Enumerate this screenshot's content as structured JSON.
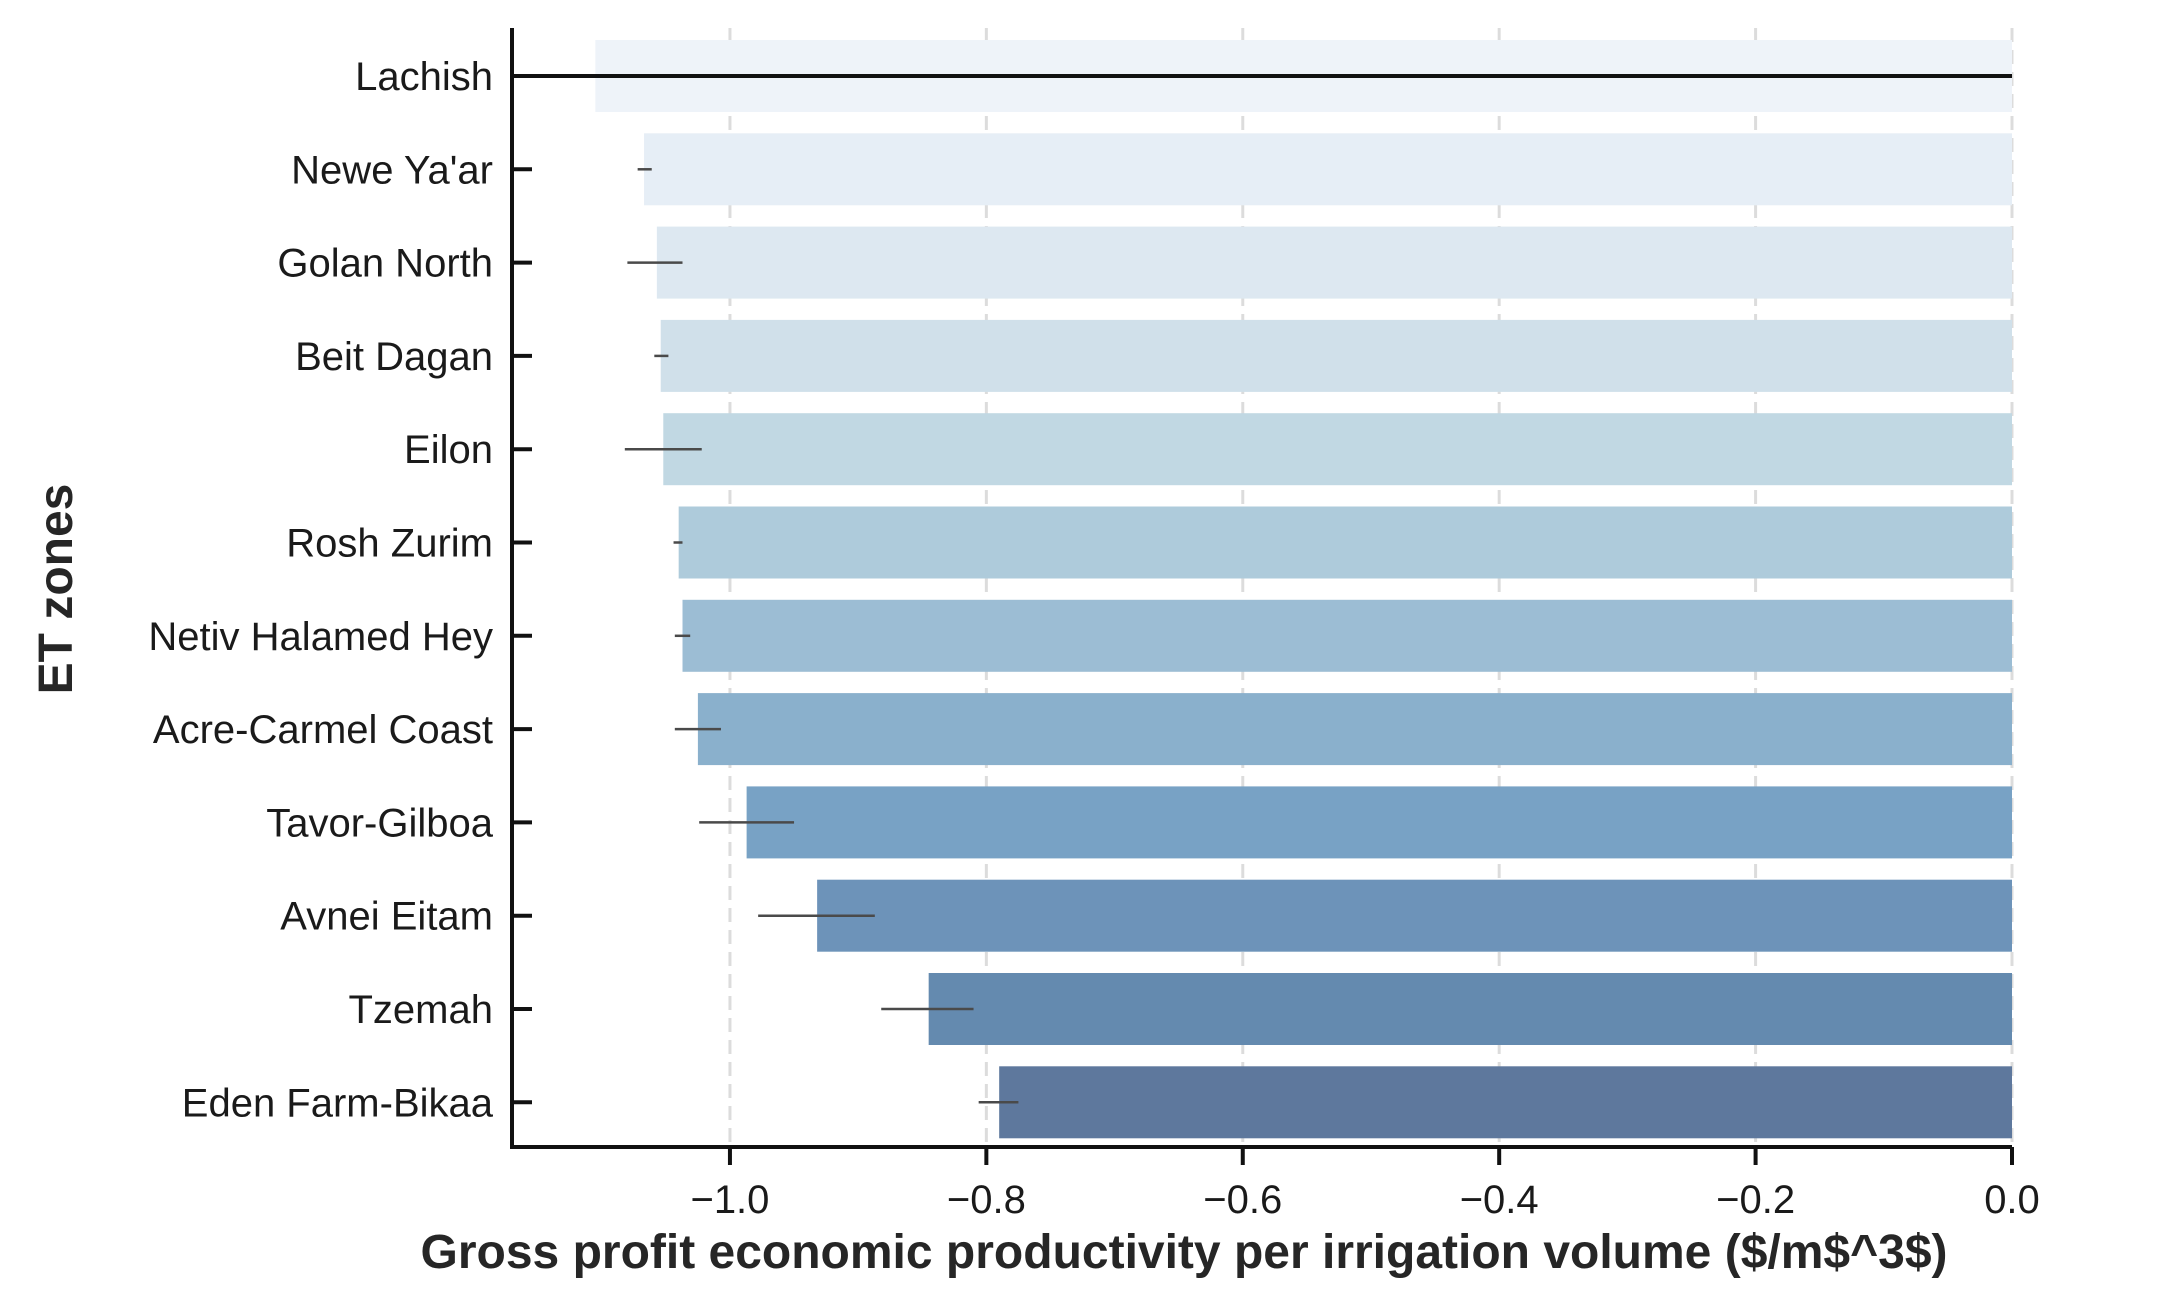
{
  "chart_data": {
    "type": "bar",
    "orientation": "horizontal",
    "xlabel": "Gross profit economic productivity per irrigation volume ($/m$^3$)",
    "ylabel": "ET zones",
    "xlim": [
      -1.17,
      0.0
    ],
    "xticks": [
      -1.0,
      -0.8,
      -0.6,
      -0.4,
      -0.2,
      0.0
    ],
    "xtick_labels": [
      "−1.0",
      "−0.8",
      "−0.6",
      "−0.4",
      "−0.2",
      "0.0"
    ],
    "grid": "vertical dashed",
    "categories": [
      "Lachish",
      "Newe Ya'ar",
      "Golan North",
      "Beit Dagan",
      "Eilon",
      "Rosh Zurim",
      "Netiv Halamed Hey",
      "Acre-Carmel Coast",
      "Tavor-Gilboa",
      "Avnei Eitam",
      "Tzemah",
      "Eden Farm-Bikaa"
    ],
    "values": [
      -1.105,
      -1.067,
      -1.057,
      -1.054,
      -1.052,
      -1.04,
      -1.037,
      -1.025,
      -0.987,
      -0.932,
      -0.845,
      -0.79
    ],
    "error_low": [
      -1.105,
      -1.072,
      -1.08,
      -1.059,
      -1.082,
      -1.044,
      -1.043,
      -1.043,
      -1.024,
      -0.978,
      -0.882,
      -0.806
    ],
    "error_high": [
      -1.105,
      -1.061,
      -1.037,
      -1.048,
      -1.022,
      -1.037,
      -1.031,
      -1.007,
      -0.95,
      -0.887,
      -0.81,
      -0.775
    ],
    "colors": [
      "#eef3f9",
      "#e6eef6",
      "#dde8f1",
      "#d0e0ea",
      "#c1d8e3",
      "#aecbdb",
      "#9cbdd4",
      "#8ab0cc",
      "#78a2c5",
      "#6d93b9",
      "#648aaf",
      "#5e789d"
    ]
  }
}
